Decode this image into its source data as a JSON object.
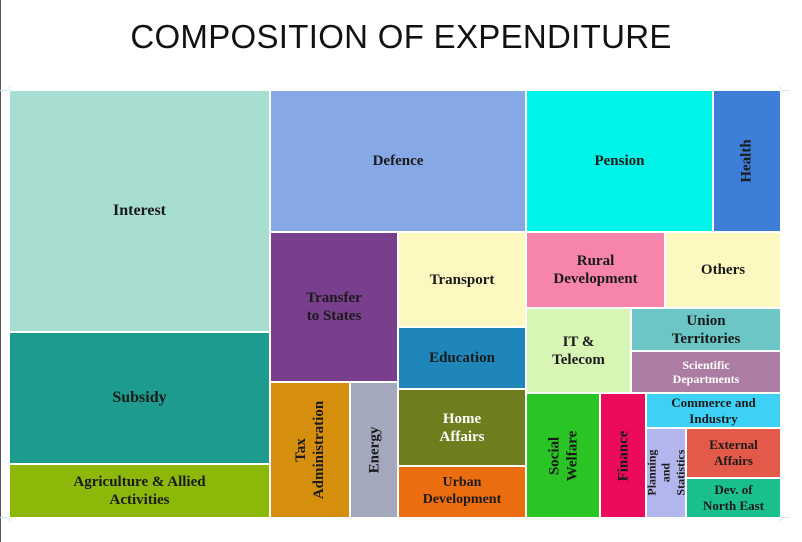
{
  "chart_data": {
    "type": "treemap",
    "title": "COMPOSITION OF EXPENDITURE",
    "items": [
      {
        "label": "Interest",
        "color": "#a8ddd2",
        "text_color": "#1a1a1a"
      },
      {
        "label": "Subsidy",
        "color": "#1e9b8f",
        "text_color": "#1a1a1a"
      },
      {
        "label": "Agriculture & Allied\nActivities",
        "color": "#8cb80a",
        "text_color": "#1a1a1a"
      },
      {
        "label": "Defence",
        "color": "#86a8e6",
        "text_color": "#1a1a1a"
      },
      {
        "label": "Pension",
        "color": "#00f5ea",
        "text_color": "#1a1a1a"
      },
      {
        "label": "Health",
        "color": "#3d7fd8",
        "text_color": "#1a1a1a"
      },
      {
        "label": "Transfer\nto States",
        "color": "#7a3f8c",
        "text_color": "#1a1a1a"
      },
      {
        "label": "Transport",
        "color": "#fdf7c0",
        "text_color": "#1a1a1a"
      },
      {
        "label": "Rural\nDevelopment",
        "color": "#f684ab",
        "text_color": "#1a1a1a"
      },
      {
        "label": "Others",
        "color": "#fdf7c0",
        "text_color": "#1a1a1a"
      },
      {
        "label": "Education",
        "color": "#1f86b9",
        "text_color": "#1a1a1a"
      },
      {
        "label": "IT &\nTelecom",
        "color": "#d7f5b5",
        "text_color": "#1a1a1a"
      },
      {
        "label": "Union\nTerritories",
        "color": "#6cc6c6",
        "text_color": "#1a1a1a"
      },
      {
        "label": "Scientific\nDepartments",
        "color": "#ad7ca3",
        "text_color": "#ffffff"
      },
      {
        "label": "Tax\nAdministration",
        "color": "#d68f0c",
        "text_color": "#1a1a1a"
      },
      {
        "label": "Energy",
        "color": "#a4a8bd",
        "text_color": "#1a1a1a"
      },
      {
        "label": "Home\nAffairs",
        "color": "#6f7d1e",
        "text_color": "#ffffff"
      },
      {
        "label": "Urban\nDevelopment",
        "color": "#eb6d10",
        "text_color": "#1a1a1a"
      },
      {
        "label": "Social\nWelfare",
        "color": "#2ac424",
        "text_color": "#1a1a1a"
      },
      {
        "label": "Finance",
        "color": "#ec0a5d",
        "text_color": "#1a1a1a"
      },
      {
        "label": "Commerce and\nIndustry",
        "color": "#3dd1f5",
        "text_color": "#1a1a1a"
      },
      {
        "label": "Planning and\nStatistics",
        "color": "#b2b6ec",
        "text_color": "#1a1a1a"
      },
      {
        "label": "External\nAffairs",
        "color": "#e35a4a",
        "text_color": "#1a1a1a"
      },
      {
        "label": "Dev. of\nNorth East",
        "color": "#1abf8e",
        "text_color": "#1a1a1a"
      }
    ]
  }
}
